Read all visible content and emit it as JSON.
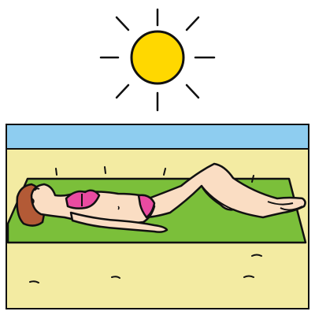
{
  "colors": {
    "sky_background": "#ffffff",
    "sun_fill": "#FFD800",
    "sea": "#8ECDF0",
    "sand": "#F3EBA2",
    "towel": "#7BBF3A",
    "skin": "#FADDC3",
    "hair": "#B35A36",
    "bikini": "#E94BA1",
    "outline": "#111111"
  },
  "icons": {
    "sun": "sun-icon",
    "person": "sunbathing-woman-icon",
    "towel": "beach-towel-icon"
  }
}
